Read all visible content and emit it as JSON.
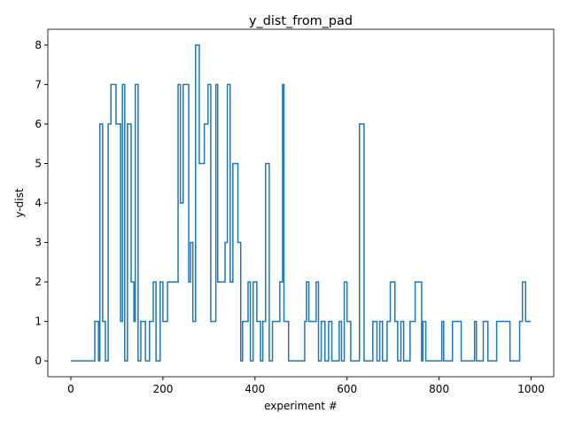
{
  "chart_data": {
    "type": "step",
    "title": "y_dist_from_pad",
    "x_label": "experiment #",
    "y_label": "y-dist",
    "x": [
      0,
      52,
      60,
      63,
      69,
      75,
      81,
      87,
      98,
      108,
      112,
      117,
      123,
      131,
      137,
      140,
      146,
      152,
      162,
      171,
      179,
      185,
      194,
      200,
      210,
      233,
      238,
      244,
      256,
      260,
      265,
      271,
      279,
      290,
      298,
      304,
      315,
      319,
      335,
      340,
      346,
      352,
      363,
      369,
      373,
      385,
      390,
      396,
      404,
      412,
      417,
      423,
      431,
      438,
      454,
      460,
      463,
      473,
      508,
      512,
      517,
      533,
      538,
      544,
      552,
      560,
      567,
      583,
      588,
      594,
      600,
      608,
      627,
      637,
      656,
      665,
      671,
      677,
      687,
      694,
      704,
      710,
      717,
      723,
      737,
      748,
      762,
      765,
      771,
      806,
      810,
      829,
      848,
      877,
      881,
      896,
      906,
      925,
      954,
      975,
      981,
      988,
      999
    ],
    "values": [
      0,
      1,
      0,
      6,
      1,
      0,
      6,
      7,
      6,
      1,
      7,
      0,
      6,
      2,
      1,
      7,
      0,
      1,
      0,
      1,
      2,
      0,
      2,
      1,
      2,
      7,
      4,
      7,
      2,
      3,
      1,
      8,
      5,
      6,
      7,
      1,
      7,
      2,
      3,
      7,
      2,
      5,
      3,
      0,
      1,
      2,
      0,
      2,
      1,
      0,
      1,
      5,
      0,
      1,
      2,
      7,
      1,
      0,
      1,
      2,
      1,
      2,
      0,
      1,
      0,
      1,
      0,
      1,
      0,
      2,
      1,
      0,
      6,
      0,
      1,
      0,
      1,
      0,
      1,
      2,
      1,
      0,
      1,
      0,
      1,
      2,
      0,
      1,
      0,
      1,
      0,
      1,
      0,
      1,
      0,
      1,
      0,
      1,
      0,
      1,
      2,
      1,
      1
    ],
    "color": "#1f77b4",
    "xlim": [
      -50,
      1049
    ],
    "ylim": [
      -0.4,
      8.4
    ],
    "xticks": [
      0,
      200,
      400,
      600,
      800,
      1000
    ],
    "yticks": [
      0,
      1,
      2,
      3,
      4,
      5,
      6,
      7,
      8
    ]
  }
}
